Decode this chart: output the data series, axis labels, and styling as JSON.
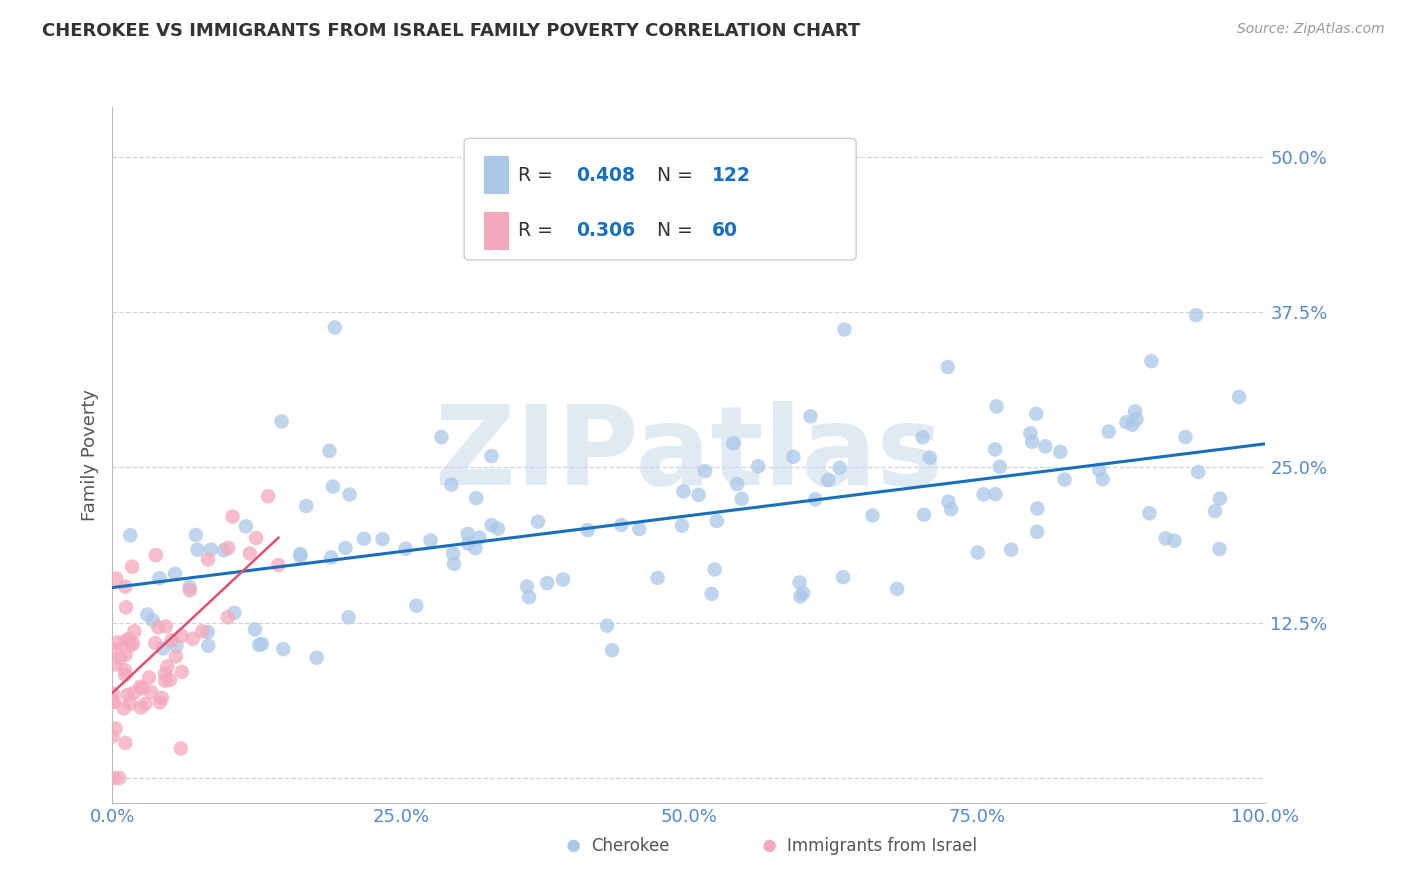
{
  "title": "CHEROKEE VS IMMIGRANTS FROM ISRAEL FAMILY POVERTY CORRELATION CHART",
  "source": "Source: ZipAtlas.com",
  "ylabel": "Family Poverty",
  "xlim": [
    0.0,
    1.0
  ],
  "ylim": [
    -0.02,
    0.54
  ],
  "yticks": [
    0.0,
    0.125,
    0.25,
    0.375,
    0.5
  ],
  "ytick_labels": [
    "",
    "12.5%",
    "25.0%",
    "37.5%",
    "50.0%"
  ],
  "xticks": [
    0.0,
    0.25,
    0.5,
    0.75,
    1.0
  ],
  "xtick_labels": [
    "0.0%",
    "25.0%",
    "50.0%",
    "75.0%",
    "100.0%"
  ],
  "legend_labels": [
    "Cherokee",
    "Immigrants from Israel"
  ],
  "R_blue": 0.408,
  "N_blue": 122,
  "R_pink": 0.306,
  "N_pink": 60,
  "blue_dot_color": "#aac8e8",
  "pink_dot_color": "#f4a8bb",
  "blue_line_color": "#1a6fbd",
  "pink_line_color": "#e05070",
  "watermark": "ZIPatlas",
  "watermark_color": "#ccdcec",
  "background_color": "#ffffff",
  "grid_color": "#c8d4e4",
  "tick_color": "#5588cc",
  "ylabel_color": "#555555",
  "title_color": "#333333",
  "source_color": "#999999"
}
